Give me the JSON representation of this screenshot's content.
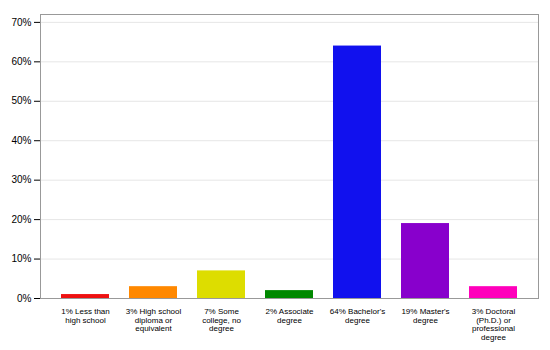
{
  "chart_data": {
    "type": "bar",
    "categories": [
      "1% Less than\nhigh school",
      "3% High school\ndiploma or\nequivalent",
      "7% Some\ncollege, no\ndegree",
      "2% Associate\ndegree",
      "64% Bachelor's\ndegree",
      "19% Master's\ndegree",
      "3% Doctoral\n(Ph.D.) or\nprofessional\ndegree"
    ],
    "values": [
      1,
      3,
      7,
      2,
      64,
      19,
      3
    ],
    "colors": [
      "#ee1111",
      "#ff8800",
      "#dddd00",
      "#008800",
      "#1111ee",
      "#8800cc",
      "#ff00bb"
    ],
    "ylim": [
      0,
      72
    ],
    "yticks": [
      {
        "value": 0,
        "label": "0%"
      },
      {
        "value": 10,
        "label": "10%"
      },
      {
        "value": 20,
        "label": "20%"
      },
      {
        "value": 30,
        "label": "30%"
      },
      {
        "value": 40,
        "label": "40%"
      },
      {
        "value": 50,
        "label": "50%"
      },
      {
        "value": 60,
        "label": "60%"
      },
      {
        "value": 70,
        "label": "70%"
      }
    ],
    "grid": true
  }
}
